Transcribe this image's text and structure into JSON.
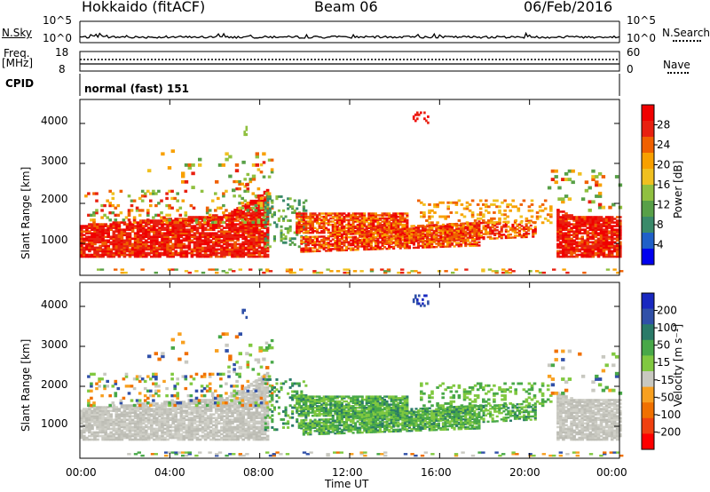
{
  "header": {
    "station": "Hokkaido (fitACF)",
    "beam": "Beam 06",
    "date": "06/Feb/2016"
  },
  "noise_panel": {
    "left_label": "N.Sky",
    "left_ticks": [
      "10^5",
      "10^0"
    ],
    "right_ticks": [
      "10^5",
      "10^0"
    ],
    "right_label": "N.Search"
  },
  "freq_panel": {
    "left_label_1": "Freq.",
    "left_label_2": "[MHz]",
    "left_ticks": [
      "18",
      "8"
    ],
    "right_ticks": [
      "60",
      "0"
    ],
    "right_label": "Nave"
  },
  "cpid": {
    "label": "CPID",
    "value": "normal (fast) 151"
  },
  "chart_data": [
    {
      "type": "heatmap",
      "ylabel": "Slant Range [km]",
      "yticks": [
        "1000",
        "2000",
        "3000",
        "4000"
      ],
      "ylim": [
        200,
        4600
      ],
      "xlim_hours": [
        0,
        24
      ],
      "colorbar": {
        "label": "Power [dB]",
        "ticks": [
          "4",
          "8",
          "12",
          "16",
          "20",
          "24",
          "28"
        ],
        "range": [
          0,
          30
        ],
        "colors": [
          "#0000ee",
          "#2060c8",
          "#3a8a6a",
          "#58a048",
          "#90c040",
          "#f0c020",
          "#f8a000",
          "#f06000",
          "#e82010",
          "#f00000"
        ]
      },
      "regions": [
        {
          "name": "night-echoes-early",
          "t": [
            0,
            8.4
          ],
          "range_km": [
            700,
            1800
          ],
          "value_db": 26
        },
        {
          "name": "day-band-1",
          "t": [
            9.5,
            17.5
          ],
          "range_km": [
            800,
            1700
          ],
          "value_db": 22
        },
        {
          "name": "night-echoes-late",
          "t": [
            21.2,
            24
          ],
          "range_km": [
            700,
            1900
          ],
          "value_db": 26
        },
        {
          "name": "scatter-early",
          "t": [
            0,
            8.5
          ],
          "range_km": [
            1800,
            3200
          ],
          "value_db": 20
        }
      ]
    },
    {
      "type": "heatmap",
      "ylabel": "Slant Range [km]",
      "yticks": [
        "1000",
        "2000",
        "3000",
        "4000"
      ],
      "ylim": [
        200,
        4600
      ],
      "xlim_hours": [
        0,
        24
      ],
      "colorbar": {
        "label": "Velocity [m s⁻¹]",
        "ticks": [
          "200",
          "100",
          "50",
          "15",
          "-15",
          "-50",
          "-100",
          "-200"
        ],
        "range": [
          -250,
          250
        ],
        "colors": [
          "#ff0000",
          "#f04010",
          "#f07000",
          "#f8a020",
          "#c8c8c0",
          "#80c840",
          "#48a848",
          "#2a7a68",
          "#3050a8",
          "#1828c0"
        ]
      },
      "regions": [
        {
          "name": "ground-scatter-early",
          "t": [
            0,
            8.4
          ],
          "range_km": [
            700,
            1800
          ],
          "value_ms": 0
        },
        {
          "name": "green-day-band",
          "t": [
            9.5,
            20.5
          ],
          "range_km": [
            800,
            1700
          ],
          "value_ms": 40
        },
        {
          "name": "ground-scatter-late",
          "t": [
            21.2,
            24
          ],
          "range_km": [
            700,
            1900
          ],
          "value_ms": 0
        }
      ]
    }
  ],
  "time_axis": {
    "label": "Time UT",
    "ticks": [
      "00:00",
      "04:00",
      "08:00",
      "12:00",
      "16:00",
      "20:00",
      "00:00"
    ]
  }
}
